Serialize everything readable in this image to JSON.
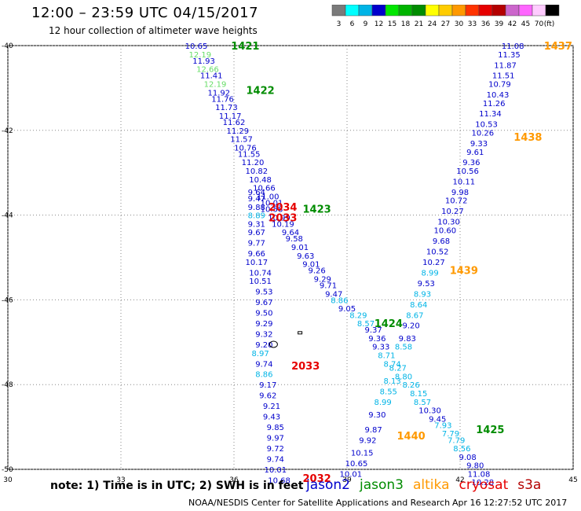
{
  "header": {
    "title": "12:00 – 23:59 UTC 04/15/2017",
    "subtitle": "12 hour collection of altimeter wave heights"
  },
  "color_scale": {
    "unit": "(ft)",
    "bins": [
      {
        "label": "3",
        "color": "#7a7a7a"
      },
      {
        "label": "6",
        "color": "#00ffff"
      },
      {
        "label": "9",
        "color": "#00b4e6"
      },
      {
        "label": "12",
        "color": "#0000cc"
      },
      {
        "label": "15",
        "color": "#00e600"
      },
      {
        "label": "18",
        "color": "#00b400"
      },
      {
        "label": "21",
        "color": "#008c00"
      },
      {
        "label": "24",
        "color": "#ffff00"
      },
      {
        "label": "27",
        "color": "#ffcc00"
      },
      {
        "label": "30",
        "color": "#ff9900"
      },
      {
        "label": "33",
        "color": "#ff3300"
      },
      {
        "label": "36",
        "color": "#e60000"
      },
      {
        "label": "39",
        "color": "#b40000"
      },
      {
        "label": "42",
        "color": "#cc66cc"
      },
      {
        "label": "45",
        "color": "#ff66ff"
      },
      {
        "label": "70",
        "color": "#ffccff"
      },
      {
        "label": "",
        "color": "#000000"
      }
    ]
  },
  "note": "note: 1) Time is in UTC; 2) SWH is in feet",
  "satellites": [
    {
      "name": "jason2",
      "color": "#0000cc"
    },
    {
      "name": "jason3",
      "color": "#008c00"
    },
    {
      "name": "altika",
      "color": "#ff9900"
    },
    {
      "name": "cryosat",
      "color": "#e60000"
    },
    {
      "name": "s3a",
      "color": "#b40000"
    }
  ],
  "footer": {
    "agency": "NOAA/NESDIS Center for Satellite Applications and Research",
    "timestamp": "Apr 16 12:27:52 UTC 2017"
  },
  "chart_data": {
    "type": "scatter",
    "title": "12 hour collection of altimeter wave heights",
    "xlim": [
      30,
      45
    ],
    "ylim": [
      -50,
      -40
    ],
    "x_ticks": [
      30,
      33,
      36,
      39,
      42,
      45
    ],
    "y_ticks": [
      -40,
      -42,
      -44,
      -46,
      -48,
      -50
    ],
    "grid": true,
    "colors": {
      "jason2": "#0000cc",
      "jason2_light": "#00b4e6",
      "jason3_light": "#66dd66",
      "jason3": "#008c00",
      "altika": "#ff9900",
      "cryosat": "#e60000"
    },
    "points": [
      {
        "lon": 35.0,
        "lat": -40.0,
        "swh": "10.65",
        "c": "jason2"
      },
      {
        "lon": 35.1,
        "lat": -40.2,
        "swh": "12.19",
        "c": "jason3_light"
      },
      {
        "lon": 35.2,
        "lat": -40.35,
        "swh": "11.93",
        "c": "jason2"
      },
      {
        "lon": 35.3,
        "lat": -40.55,
        "swh": "12.66",
        "c": "jason3_light"
      },
      {
        "lon": 35.4,
        "lat": -40.7,
        "swh": "11.41",
        "c": "jason2"
      },
      {
        "lon": 35.5,
        "lat": -40.9,
        "swh": "12.19",
        "c": "jason3_light"
      },
      {
        "lon": 35.6,
        "lat": -41.1,
        "swh": "11.92",
        "c": "jason2"
      },
      {
        "lon": 35.7,
        "lat": -41.25,
        "swh": "11.76",
        "c": "jason2"
      },
      {
        "lon": 35.8,
        "lat": -41.45,
        "swh": "11.73",
        "c": "jason2"
      },
      {
        "lon": 35.9,
        "lat": -41.65,
        "swh": "11.17",
        "c": "jason2"
      },
      {
        "lon": 36.0,
        "lat": -41.8,
        "swh": "11.62",
        "c": "jason2"
      },
      {
        "lon": 36.1,
        "lat": -42.0,
        "swh": "11.29",
        "c": "jason2"
      },
      {
        "lon": 36.2,
        "lat": -42.2,
        "swh": "11.57",
        "c": "jason2"
      },
      {
        "lon": 36.3,
        "lat": -42.4,
        "swh": "10.76",
        "c": "jason2"
      },
      {
        "lon": 36.4,
        "lat": -42.55,
        "swh": "11.55",
        "c": "jason2"
      },
      {
        "lon": 36.5,
        "lat": -42.75,
        "swh": "11.20",
        "c": "jason2"
      },
      {
        "lon": 36.6,
        "lat": -42.95,
        "swh": "10.82",
        "c": "jason2"
      },
      {
        "lon": 36.7,
        "lat": -43.15,
        "swh": "10.48",
        "c": "jason2"
      },
      {
        "lon": 36.8,
        "lat": -43.35,
        "swh": "10.66",
        "c": "jason2"
      },
      {
        "lon": 36.6,
        "lat": -43.45,
        "swh": "9.64",
        "c": "jason2"
      },
      {
        "lon": 36.9,
        "lat": -43.55,
        "swh": "11.00",
        "c": "jason2"
      },
      {
        "lon": 36.6,
        "lat": -43.6,
        "swh": "9.47",
        "c": "jason2"
      },
      {
        "lon": 37.0,
        "lat": -43.7,
        "swh": "10.01",
        "c": "jason2"
      },
      {
        "lon": 36.6,
        "lat": -43.8,
        "swh": "9.88",
        "c": "jason2"
      },
      {
        "lon": 37.0,
        "lat": -43.85,
        "swh": "10.58",
        "c": "jason2"
      },
      {
        "lon": 36.6,
        "lat": -44.0,
        "swh": "8.89",
        "c": "jason2_light"
      },
      {
        "lon": 37.2,
        "lat": -44.05,
        "swh": "10.99",
        "c": "jason2"
      },
      {
        "lon": 36.6,
        "lat": -44.2,
        "swh": "9.31",
        "c": "jason2"
      },
      {
        "lon": 37.3,
        "lat": -44.2,
        "swh": "10.19",
        "c": "jason2"
      },
      {
        "lon": 37.5,
        "lat": -44.4,
        "swh": "9.64",
        "c": "jason2"
      },
      {
        "lon": 36.6,
        "lat": -44.4,
        "swh": "9.67",
        "c": "jason2"
      },
      {
        "lon": 37.6,
        "lat": -44.55,
        "swh": "9.58",
        "c": "jason2"
      },
      {
        "lon": 36.6,
        "lat": -44.65,
        "swh": "9.77",
        "c": "jason2"
      },
      {
        "lon": 37.75,
        "lat": -44.75,
        "swh": "9.01",
        "c": "jason2"
      },
      {
        "lon": 36.6,
        "lat": -44.9,
        "swh": "9.66",
        "c": "jason2"
      },
      {
        "lon": 37.9,
        "lat": -44.95,
        "swh": "9.63",
        "c": "jason2"
      },
      {
        "lon": 36.6,
        "lat": -45.1,
        "swh": "10.17",
        "c": "jason2"
      },
      {
        "lon": 38.05,
        "lat": -45.15,
        "swh": "9.01",
        "c": "jason2"
      },
      {
        "lon": 36.7,
        "lat": -45.35,
        "swh": "10.74",
        "c": "jason2"
      },
      {
        "lon": 38.2,
        "lat": -45.3,
        "swh": "9.26",
        "c": "jason2"
      },
      {
        "lon": 38.35,
        "lat": -45.5,
        "swh": "9.29",
        "c": "jason2"
      },
      {
        "lon": 36.7,
        "lat": -45.55,
        "swh": "10.51",
        "c": "jason2"
      },
      {
        "lon": 38.5,
        "lat": -45.65,
        "swh": "9.71",
        "c": "jason2"
      },
      {
        "lon": 36.8,
        "lat": -45.8,
        "swh": "9.53",
        "c": "jason2"
      },
      {
        "lon": 38.65,
        "lat": -45.85,
        "swh": "9.47",
        "c": "jason2"
      },
      {
        "lon": 36.8,
        "lat": -46.05,
        "swh": "9.67",
        "c": "jason2"
      },
      {
        "lon": 38.8,
        "lat": -46.0,
        "swh": "8.86",
        "c": "jason2_light"
      },
      {
        "lon": 39.0,
        "lat": -46.2,
        "swh": "9.05",
        "c": "jason2"
      },
      {
        "lon": 36.8,
        "lat": -46.3,
        "swh": "9.50",
        "c": "jason2"
      },
      {
        "lon": 39.3,
        "lat": -46.35,
        "swh": "8.29",
        "c": "jason2_light"
      },
      {
        "lon": 36.8,
        "lat": -46.55,
        "swh": "9.29",
        "c": "jason2"
      },
      {
        "lon": 39.5,
        "lat": -46.55,
        "swh": "8.57",
        "c": "jason2_light"
      },
      {
        "lon": 36.8,
        "lat": -46.8,
        "swh": "9.32",
        "c": "jason2"
      },
      {
        "lon": 39.7,
        "lat": -46.7,
        "swh": "9.37",
        "c": "jason2"
      },
      {
        "lon": 39.8,
        "lat": -46.9,
        "swh": "9.36",
        "c": "jason2"
      },
      {
        "lon": 36.8,
        "lat": -47.05,
        "swh": "9.20",
        "c": "jason2"
      },
      {
        "lon": 39.9,
        "lat": -47.1,
        "swh": "9.33",
        "c": "jason2"
      },
      {
        "lon": 36.7,
        "lat": -47.25,
        "swh": "8.97",
        "c": "jason2_light"
      },
      {
        "lon": 40.05,
        "lat": -47.3,
        "swh": "8.71",
        "c": "jason2_light"
      },
      {
        "lon": 36.8,
        "lat": -47.5,
        "swh": "9.74",
        "c": "jason2"
      },
      {
        "lon": 40.2,
        "lat": -47.5,
        "swh": "8.74",
        "c": "jason2_light"
      },
      {
        "lon": 40.35,
        "lat": -47.6,
        "swh": "8.27",
        "c": "jason2_light"
      },
      {
        "lon": 36.8,
        "lat": -47.75,
        "swh": "8.86",
        "c": "jason2_light"
      },
      {
        "lon": 40.5,
        "lat": -47.8,
        "swh": "8.80",
        "c": "jason2_light"
      },
      {
        "lon": 36.9,
        "lat": -48.0,
        "swh": "9.17",
        "c": "jason2"
      },
      {
        "lon": 40.2,
        "lat": -47.9,
        "swh": "8.13",
        "c": "jason2_light"
      },
      {
        "lon": 40.7,
        "lat": -48.0,
        "swh": "8.26",
        "c": "jason2_light"
      },
      {
        "lon": 36.9,
        "lat": -48.25,
        "swh": "9.62",
        "c": "jason2"
      },
      {
        "lon": 40.1,
        "lat": -48.15,
        "swh": "8.55",
        "c": "jason2_light"
      },
      {
        "lon": 40.9,
        "lat": -48.2,
        "swh": "8.15",
        "c": "jason2_light"
      },
      {
        "lon": 37.0,
        "lat": -48.5,
        "swh": "9.21",
        "c": "jason2"
      },
      {
        "lon": 41.0,
        "lat": -48.4,
        "swh": "8.57",
        "c": "jason2_light"
      },
      {
        "lon": 39.95,
        "lat": -48.4,
        "swh": "8.99",
        "c": "jason2_light"
      },
      {
        "lon": 41.2,
        "lat": -48.6,
        "swh": "10.30",
        "c": "jason2"
      },
      {
        "lon": 37.0,
        "lat": -48.75,
        "swh": "9.43",
        "c": "jason2"
      },
      {
        "lon": 39.8,
        "lat": -48.7,
        "swh": "9.30",
        "c": "jason2"
      },
      {
        "lon": 41.4,
        "lat": -48.8,
        "swh": "9.45",
        "c": "jason2"
      },
      {
        "lon": 37.1,
        "lat": -49.0,
        "swh": "9.85",
        "c": "jason2"
      },
      {
        "lon": 41.55,
        "lat": -48.95,
        "swh": "7.93",
        "c": "jason2_light"
      },
      {
        "lon": 39.7,
        "lat": -49.05,
        "swh": "9.87",
        "c": "jason2"
      },
      {
        "lon": 41.75,
        "lat": -49.15,
        "swh": "7.79",
        "c": "jason2_light"
      },
      {
        "lon": 37.1,
        "lat": -49.25,
        "swh": "9.97",
        "c": "jason2"
      },
      {
        "lon": 39.55,
        "lat": -49.3,
        "swh": "9.92",
        "c": "jason2"
      },
      {
        "lon": 41.9,
        "lat": -49.3,
        "swh": "7.79",
        "c": "jason2_light"
      },
      {
        "lon": 37.1,
        "lat": -49.5,
        "swh": "9.72",
        "c": "jason2"
      },
      {
        "lon": 42.05,
        "lat": -49.5,
        "swh": "8.56",
        "c": "jason2_light"
      },
      {
        "lon": 39.4,
        "lat": -49.6,
        "swh": "10.15",
        "c": "jason2"
      },
      {
        "lon": 37.1,
        "lat": -49.75,
        "swh": "9.74",
        "c": "jason2"
      },
      {
        "lon": 42.2,
        "lat": -49.7,
        "swh": "9.08",
        "c": "jason2"
      },
      {
        "lon": 39.25,
        "lat": -49.85,
        "swh": "10.65",
        "c": "jason2"
      },
      {
        "lon": 37.1,
        "lat": -50.0,
        "swh": "10.01",
        "c": "jason2"
      },
      {
        "lon": 42.4,
        "lat": -49.9,
        "swh": "9.80",
        "c": "jason2"
      },
      {
        "lon": 42.5,
        "lat": -50.1,
        "swh": "11.08",
        "c": "jason2"
      },
      {
        "lon": 39.1,
        "lat": -50.1,
        "swh": "10.01",
        "c": "jason2"
      },
      {
        "lon": 37.2,
        "lat": -50.25,
        "swh": "10.68",
        "c": "jason2"
      },
      {
        "lon": 42.6,
        "lat": -50.3,
        "swh": "10.28",
        "c": "jason2"
      },
      {
        "lon": 43.4,
        "lat": -40.0,
        "swh": "11.08",
        "c": "jason2"
      },
      {
        "lon": 43.3,
        "lat": -40.2,
        "swh": "11.35",
        "c": "jason2"
      },
      {
        "lon": 43.2,
        "lat": -40.45,
        "swh": "11.87",
        "c": "jason2"
      },
      {
        "lon": 43.15,
        "lat": -40.7,
        "swh": "11.51",
        "c": "jason2"
      },
      {
        "lon": 43.05,
        "lat": -40.9,
        "swh": "10.79",
        "c": "jason2"
      },
      {
        "lon": 43.0,
        "lat": -41.15,
        "swh": "10.43",
        "c": "jason2"
      },
      {
        "lon": 42.9,
        "lat": -41.35,
        "swh": "11.26",
        "c": "jason2"
      },
      {
        "lon": 42.8,
        "lat": -41.6,
        "swh": "11.34",
        "c": "jason2"
      },
      {
        "lon": 42.7,
        "lat": -41.85,
        "swh": "10.53",
        "c": "jason2"
      },
      {
        "lon": 42.6,
        "lat": -42.05,
        "swh": "10.26",
        "c": "jason2"
      },
      {
        "lon": 42.5,
        "lat": -42.3,
        "swh": "9.33",
        "c": "jason2"
      },
      {
        "lon": 42.4,
        "lat": -42.5,
        "swh": "9.61",
        "c": "jason2"
      },
      {
        "lon": 42.3,
        "lat": -42.75,
        "swh": "9.36",
        "c": "jason2"
      },
      {
        "lon": 42.2,
        "lat": -42.95,
        "swh": "10.56",
        "c": "jason2"
      },
      {
        "lon": 42.1,
        "lat": -43.2,
        "swh": "10.11",
        "c": "jason2"
      },
      {
        "lon": 42.0,
        "lat": -43.45,
        "swh": "9.98",
        "c": "jason2"
      },
      {
        "lon": 41.9,
        "lat": -43.65,
        "swh": "10.72",
        "c": "jason2"
      },
      {
        "lon": 41.8,
        "lat": -43.9,
        "swh": "10.27",
        "c": "jason2"
      },
      {
        "lon": 41.7,
        "lat": -44.15,
        "swh": "10.30",
        "c": "jason2"
      },
      {
        "lon": 41.6,
        "lat": -44.35,
        "swh": "10.60",
        "c": "jason2"
      },
      {
        "lon": 41.5,
        "lat": -44.6,
        "swh": "9.68",
        "c": "jason2"
      },
      {
        "lon": 41.4,
        "lat": -44.85,
        "swh": "10.52",
        "c": "jason2"
      },
      {
        "lon": 41.3,
        "lat": -45.1,
        "swh": "10.27",
        "c": "jason2"
      },
      {
        "lon": 41.2,
        "lat": -45.35,
        "swh": "8.99",
        "c": "jason2_light"
      },
      {
        "lon": 41.1,
        "lat": -45.6,
        "swh": "9.53",
        "c": "jason2"
      },
      {
        "lon": 41.0,
        "lat": -45.85,
        "swh": "8.93",
        "c": "jason2_light"
      },
      {
        "lon": 40.9,
        "lat": -46.1,
        "swh": "8.64",
        "c": "jason2_light"
      },
      {
        "lon": 40.8,
        "lat": -46.35,
        "swh": "8.67",
        "c": "jason2_light"
      },
      {
        "lon": 40.7,
        "lat": -46.6,
        "swh": "9.20",
        "c": "jason2"
      },
      {
        "lon": 40.6,
        "lat": -46.9,
        "swh": "9.83",
        "c": "jason2"
      },
      {
        "lon": 40.5,
        "lat": -47.1,
        "swh": "8.58",
        "c": "jason2_light"
      }
    ],
    "labels": [
      {
        "lon": 36.3,
        "lat": -40.0,
        "text": "1421",
        "c": "jason3"
      },
      {
        "lon": 36.7,
        "lat": -41.05,
        "text": "1422",
        "c": "jason3"
      },
      {
        "lon": 38.2,
        "lat": -43.85,
        "text": "1423",
        "c": "jason3"
      },
      {
        "lon": 40.1,
        "lat": -46.55,
        "text": "1424",
        "c": "jason3"
      },
      {
        "lon": 42.8,
        "lat": -49.05,
        "text": "1425",
        "c": "jason3"
      },
      {
        "lon": 44.6,
        "lat": -40.0,
        "text": "1437",
        "c": "altika"
      },
      {
        "lon": 43.8,
        "lat": -42.15,
        "text": "1438",
        "c": "altika"
      },
      {
        "lon": 42.1,
        "lat": -45.3,
        "text": "1439",
        "c": "altika"
      },
      {
        "lon": 40.7,
        "lat": -49.2,
        "text": "1440",
        "c": "altika"
      },
      {
        "lon": 37.3,
        "lat": -43.8,
        "text": "2034",
        "c": "cryosat"
      },
      {
        "lon": 37.3,
        "lat": -44.05,
        "text": "2033",
        "c": "cryosat"
      },
      {
        "lon": 37.9,
        "lat": -47.55,
        "text": "2033",
        "c": "cryosat"
      },
      {
        "lon": 38.2,
        "lat": -50.2,
        "text": "2032",
        "c": "cryosat"
      }
    ]
  }
}
